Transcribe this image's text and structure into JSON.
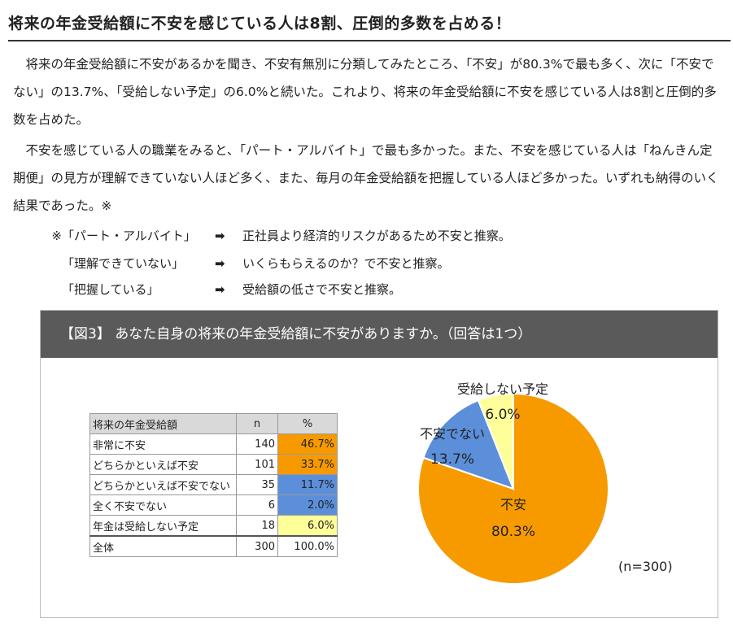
{
  "headline": "将来の年金受給額に不安を感じている人は8割、圧倒的多数を占める！",
  "paragraph1": "　将来の年金受給額に不安があるかを聞き、不安有無別に分類してみたところ、「不安」が80.3%で最も多く、次に「不安でない」の13.7%、「受給しない予定」の6.0%と続いた。これより、将来の年金受給額に不安を感じている人は8割と圧倒的多数を占めた。",
  "paragraph2": "　不安を感じている人の職業をみると、「パート・アルバイト」で最も多かった。また、不安を感じている人は「ねんきん定期便」の見方が理解できていない人ほど多く、また、毎月の年金受給額を把握している人ほど多かった。いずれも納得のいく結果であった。※",
  "notes": [
    {
      "mark": "※",
      "label": "「パート・アルバイト」",
      "arrow": "➡",
      "text": "正社員より経済的リスクがあるため不安と推察。"
    },
    {
      "mark": "",
      "label": "「理解できていない」",
      "arrow": "➡",
      "text": "いくらもらえるのか？で不安と推察。"
    },
    {
      "mark": "",
      "label": "「把握している」",
      "arrow": "➡",
      "text": "受給額の低さで不安と推察。"
    }
  ],
  "figure": {
    "title": "【図3】 あなた自身の将来の年金受給額に不安がありますか。（回答は1つ）",
    "n_note": "(n=300)"
  },
  "table": {
    "headers": [
      "将来の年金受給額",
      "n",
      "%"
    ],
    "rows": [
      {
        "label": "非常に不安",
        "n": "140",
        "pct": "46.7%",
        "color": "#f79a00"
      },
      {
        "label": "どちらかといえば不安",
        "n": "101",
        "pct": "33.7%",
        "color": "#f79a00"
      },
      {
        "label": "どちらかといえば不安でない",
        "n": "35",
        "pct": "11.7%",
        "color": "#5b8fd9"
      },
      {
        "label": "全く不安でない",
        "n": "6",
        "pct": "2.0%",
        "color": "#5b8fd9"
      },
      {
        "label": "年金は受給しない予定",
        "n": "18",
        "pct": "6.0%",
        "color": "#ffff99"
      }
    ],
    "total": {
      "label": "全体",
      "n": "300",
      "pct": "100.0%"
    }
  },
  "chart_data": {
    "type": "pie",
    "slices": [
      {
        "label": "不安",
        "value": 80.3,
        "value_label": "80.3%",
        "color": "#f79a00"
      },
      {
        "label": "不安でない",
        "value": 13.7,
        "value_label": "13.7%",
        "color": "#5b8fd9"
      },
      {
        "label": "受給しない予定",
        "value": 6.0,
        "value_label": "6.0%",
        "color": "#ffff99"
      }
    ]
  }
}
